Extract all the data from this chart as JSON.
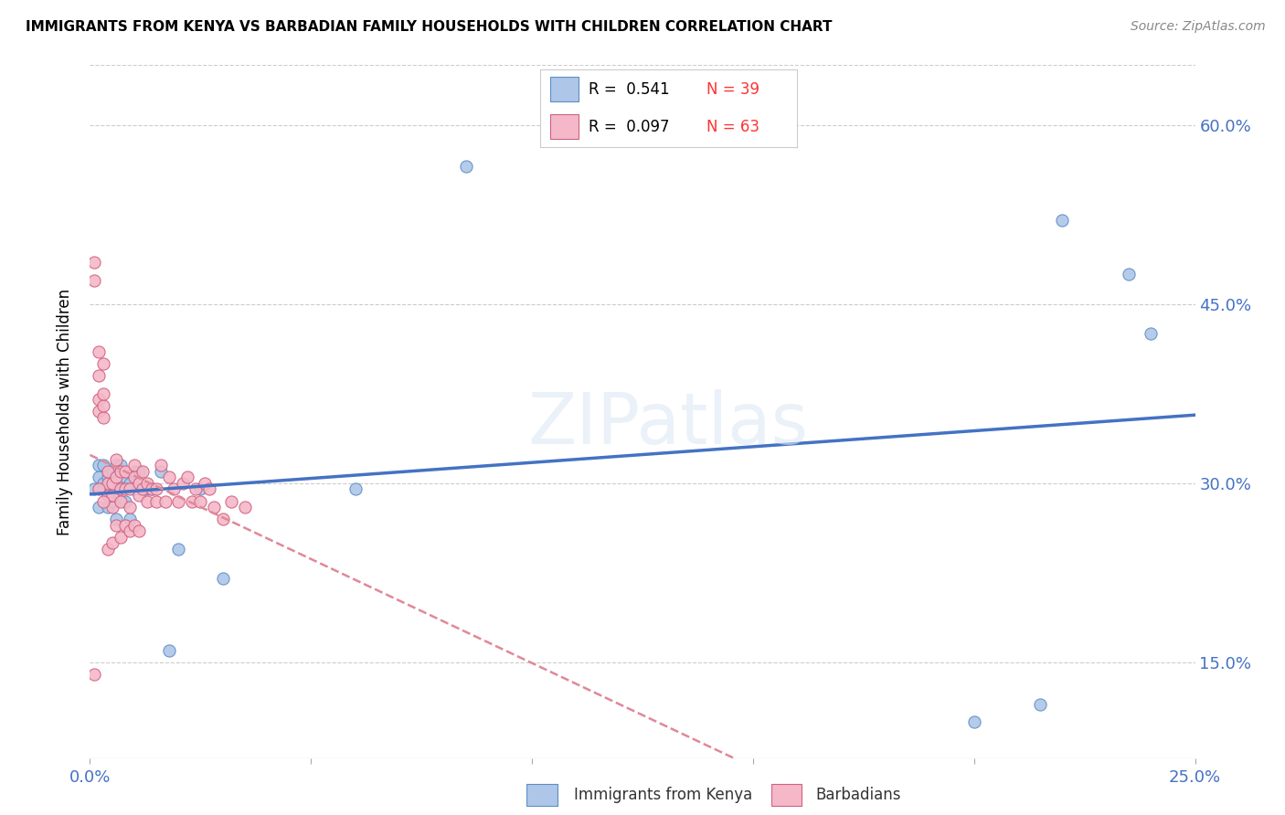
{
  "title": "IMMIGRANTS FROM KENYA VS BARBADIAN FAMILY HOUSEHOLDS WITH CHILDREN CORRELATION CHART",
  "source": "Source: ZipAtlas.com",
  "ylabel": "Family Households with Children",
  "xlim": [
    0.0,
    0.25
  ],
  "ylim": [
    0.07,
    0.65
  ],
  "x_ticks": [
    0.0,
    0.25
  ],
  "x_tick_labels": [
    "0.0%",
    "25.0%"
  ],
  "y_ticks": [
    0.15,
    0.3,
    0.45,
    0.6
  ],
  "y_tick_labels": [
    "15.0%",
    "30.0%",
    "45.0%",
    "60.0%"
  ],
  "legend_r1": "R =  0.541",
  "legend_n1": "N = 39",
  "legend_r2": "R =  0.097",
  "legend_n2": "N = 63",
  "color_blue_fill": "#aec6e8",
  "color_blue_edge": "#5b8ec4",
  "color_pink_fill": "#f4b8c8",
  "color_pink_edge": "#d06080",
  "color_blue_line": "#4472c4",
  "color_pink_line": "#e08898",
  "color_r_text": "#4472c4",
  "color_n_text": "#ff3333",
  "kenya_x": [
    0.001,
    0.002,
    0.002,
    0.002,
    0.003,
    0.003,
    0.003,
    0.004,
    0.004,
    0.004,
    0.005,
    0.005,
    0.006,
    0.006,
    0.006,
    0.007,
    0.007,
    0.008,
    0.008,
    0.009,
    0.009,
    0.01,
    0.01,
    0.011,
    0.012,
    0.013,
    0.014,
    0.016,
    0.018,
    0.02,
    0.025,
    0.03,
    0.06,
    0.085,
    0.22,
    0.235,
    0.24,
    0.2,
    0.215
  ],
  "kenya_y": [
    0.295,
    0.305,
    0.315,
    0.28,
    0.3,
    0.315,
    0.295,
    0.29,
    0.305,
    0.28,
    0.31,
    0.285,
    0.295,
    0.315,
    0.27,
    0.295,
    0.315,
    0.305,
    0.285,
    0.3,
    0.27,
    0.295,
    0.31,
    0.31,
    0.295,
    0.295,
    0.295,
    0.31,
    0.16,
    0.245,
    0.295,
    0.22,
    0.295,
    0.565,
    0.52,
    0.475,
    0.425,
    0.1,
    0.115
  ],
  "barbadian_x": [
    0.001,
    0.001,
    0.002,
    0.002,
    0.002,
    0.003,
    0.003,
    0.003,
    0.004,
    0.004,
    0.004,
    0.005,
    0.005,
    0.005,
    0.006,
    0.006,
    0.007,
    0.007,
    0.007,
    0.008,
    0.008,
    0.009,
    0.009,
    0.01,
    0.01,
    0.011,
    0.011,
    0.012,
    0.012,
    0.013,
    0.013,
    0.014,
    0.015,
    0.015,
    0.016,
    0.017,
    0.018,
    0.019,
    0.02,
    0.021,
    0.022,
    0.023,
    0.024,
    0.025,
    0.026,
    0.027,
    0.028,
    0.03,
    0.032,
    0.035,
    0.002,
    0.003,
    0.004,
    0.005,
    0.006,
    0.007,
    0.008,
    0.009,
    0.01,
    0.011,
    0.001,
    0.002,
    0.003
  ],
  "barbadian_y": [
    0.47,
    0.485,
    0.36,
    0.37,
    0.39,
    0.355,
    0.365,
    0.375,
    0.29,
    0.3,
    0.31,
    0.28,
    0.29,
    0.3,
    0.305,
    0.32,
    0.285,
    0.295,
    0.31,
    0.295,
    0.31,
    0.28,
    0.295,
    0.305,
    0.315,
    0.29,
    0.3,
    0.295,
    0.31,
    0.285,
    0.3,
    0.295,
    0.285,
    0.295,
    0.315,
    0.285,
    0.305,
    0.295,
    0.285,
    0.3,
    0.305,
    0.285,
    0.295,
    0.285,
    0.3,
    0.295,
    0.28,
    0.27,
    0.285,
    0.28,
    0.41,
    0.4,
    0.245,
    0.25,
    0.265,
    0.255,
    0.265,
    0.26,
    0.265,
    0.26,
    0.14,
    0.295,
    0.285
  ]
}
